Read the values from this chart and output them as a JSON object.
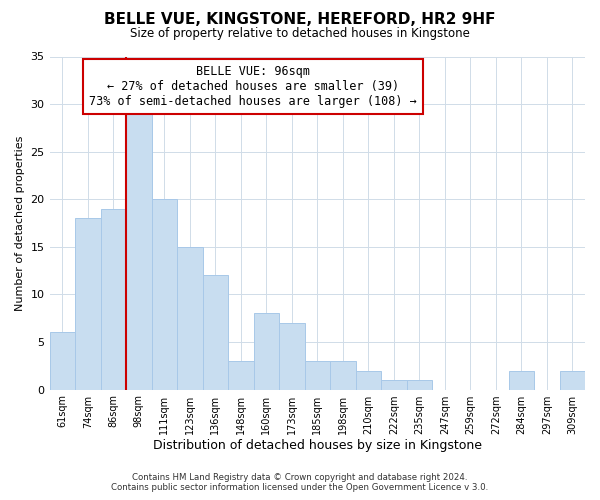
{
  "title": "BELLE VUE, KINGSTONE, HEREFORD, HR2 9HF",
  "subtitle": "Size of property relative to detached houses in Kingstone",
  "xlabel": "Distribution of detached houses by size in Kingstone",
  "ylabel": "Number of detached properties",
  "bar_color": "#c8ddf0",
  "bar_edge_color": "#a8c8e8",
  "bin_labels": [
    "61sqm",
    "74sqm",
    "86sqm",
    "98sqm",
    "111sqm",
    "123sqm",
    "136sqm",
    "148sqm",
    "160sqm",
    "173sqm",
    "185sqm",
    "198sqm",
    "210sqm",
    "222sqm",
    "235sqm",
    "247sqm",
    "259sqm",
    "272sqm",
    "284sqm",
    "297sqm",
    "309sqm"
  ],
  "bar_heights": [
    6,
    18,
    19,
    29,
    20,
    15,
    12,
    3,
    8,
    7,
    3,
    3,
    2,
    1,
    1,
    0,
    0,
    0,
    2,
    0,
    2
  ],
  "ylim": [
    0,
    35
  ],
  "yticks": [
    0,
    5,
    10,
    15,
    20,
    25,
    30,
    35
  ],
  "annotation_title": "BELLE VUE: 96sqm",
  "annotation_line1": "← 27% of detached houses are smaller (39)",
  "annotation_line2": "73% of semi-detached houses are larger (108) →",
  "footer_line1": "Contains HM Land Registry data © Crown copyright and database right 2024.",
  "footer_line2": "Contains public sector information licensed under the Open Government Licence v 3.0.",
  "background_color": "#ffffff",
  "annotation_box_color": "#ffffff",
  "annotation_box_edge": "#cc0000",
  "marker_line_color": "#cc0000",
  "grid_color": "#d0dce8"
}
